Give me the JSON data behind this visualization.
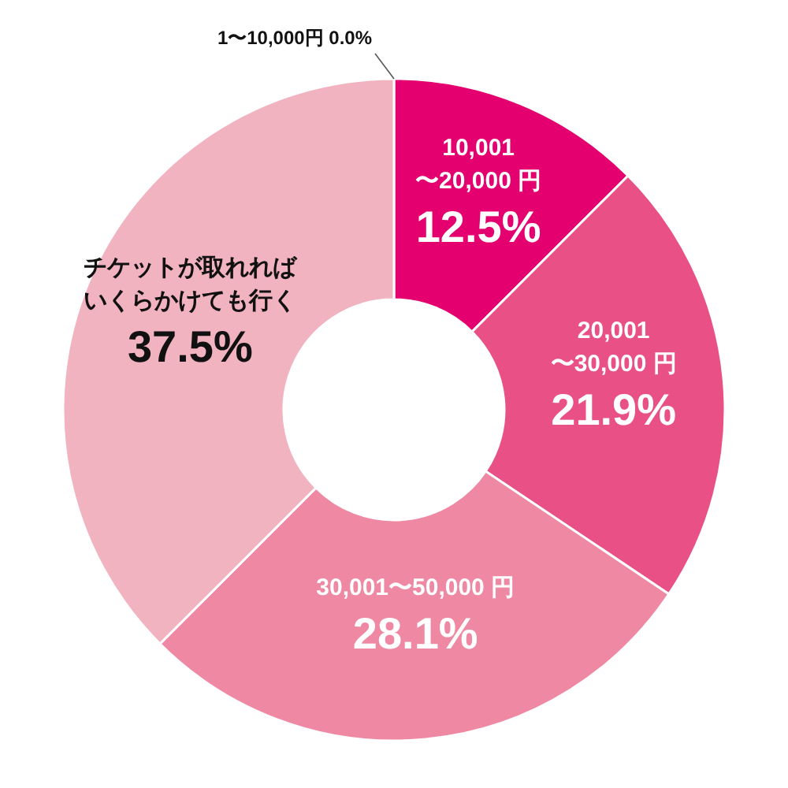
{
  "chart_data": {
    "type": "donut",
    "categories": [
      "1〜10,000円",
      "10,001\n〜20,000 円",
      "20,001\n〜30,000 円",
      "30,001〜50,000 円",
      "チケットが取れればいくらかけても行く"
    ],
    "values": [
      0.0,
      12.5,
      21.9,
      28.1,
      37.5
    ],
    "value_labels": [
      "0.0%",
      "12.5%",
      "21.9%",
      "28.1%",
      "37.5%"
    ],
    "colors": [
      "#cccccc",
      "#e4006f",
      "#e95085",
      "#ef88a2",
      "#f2b3c0"
    ]
  }
}
